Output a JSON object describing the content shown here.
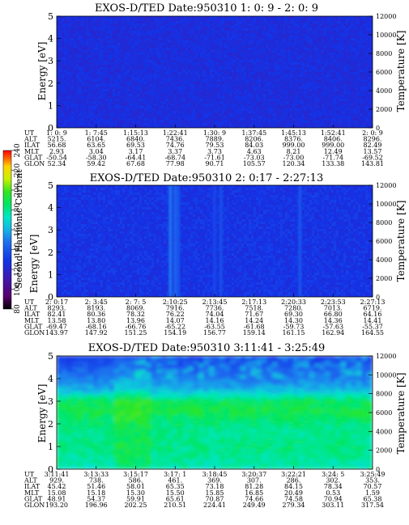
{
  "colorbar": {
    "label": "Second Harmonic Current",
    "ticks": [
      "80",
      "100",
      "120",
      "140",
      "160",
      "180",
      "200",
      "220",
      "240"
    ]
  },
  "panels": [
    {
      "title": "EXOS-D/TED   Date:950310  1: 0: 9 - 2: 0: 9",
      "ylabel_left": "Energy [eV]",
      "ylabel_right": "Temperature [K]",
      "y_ticks": [
        "0",
        "1",
        "2",
        "3",
        "4",
        "5"
      ],
      "t_ticks": [
        "0",
        "2000",
        "4000",
        "6000",
        "8000",
        "10000",
        "12000"
      ],
      "row_labels": [
        "UT",
        "ALT",
        "ILAT",
        "MLT",
        "GLAT",
        "GLON"
      ],
      "columns": [
        [
          "1: 0: 9",
          "5215.",
          "56.68",
          "2.93",
          "-50.54",
          "52.34"
        ],
        [
          "1: 7:45",
          "6104.",
          "63.65",
          "3.04",
          "-58.30",
          "59.42"
        ],
        [
          "1:15:13",
          "6840.",
          "69.53",
          "3.17",
          "-64.41",
          "67.68"
        ],
        [
          "1:22:41",
          "7436.",
          "74.76",
          "3.37",
          "-68.74",
          "77.98"
        ],
        [
          "1:30: 9",
          "7889.",
          "79.53",
          "3.73",
          "-71.61",
          "90.71"
        ],
        [
          "1:37:45",
          "8206.",
          "84.03",
          "4.63",
          "-73.03",
          "105.57"
        ],
        [
          "1:45:13",
          "8376.",
          "999.00",
          "8.21",
          "-73.00",
          "120.34"
        ],
        [
          "1:52:41",
          "8406.",
          "999.00",
          "12.49",
          "-71.74",
          "133.38"
        ],
        [
          "2: 0: 9",
          "8296.",
          "82.49",
          "13.57",
          "-69.52",
          "143.81"
        ]
      ]
    },
    {
      "title": "EXOS-D/TED   Date:950310  2: 0:17 - 2:27:13",
      "ylabel_left": "Energy [eV]",
      "ylabel_right": "Temperature [K]",
      "y_ticks": [
        "0",
        "1",
        "2",
        "3",
        "4",
        "5"
      ],
      "t_ticks": [
        "0",
        "2000",
        "4000",
        "6000",
        "8000",
        "10000",
        "12000"
      ],
      "row_labels": [
        "UT",
        "ALT",
        "ILAT",
        "MLT",
        "GLAT",
        "GLON"
      ],
      "columns": [
        [
          "2: 0:17",
          "8293.",
          "82.41",
          "13.58",
          "-69.47",
          "143.97"
        ],
        [
          "2: 3:45",
          "8193.",
          "80.36",
          "13.80",
          "-68.16",
          "147.92"
        ],
        [
          "2: 7: 5",
          "8069.",
          "78.32",
          "13.96",
          "-66.76",
          "151.25"
        ],
        [
          "2:10:25",
          "7916.",
          "76.22",
          "14.07",
          "-65.22",
          "154.19"
        ],
        [
          "2:13:45",
          "7736.",
          "74.04",
          "14.16",
          "-63.55",
          "156.77"
        ],
        [
          "2:17:13",
          "7518.",
          "71.67",
          "14.24",
          "-61.68",
          "159.14"
        ],
        [
          "2:20:33",
          "7280.",
          "69.30",
          "14.30",
          "-59.73",
          "161.15"
        ],
        [
          "2:23:53",
          "7013.",
          "66.80",
          "14.36",
          "-57.63",
          "162.94"
        ],
        [
          "2:27:13",
          "6719.",
          "64.16",
          "14.41",
          "-55.37",
          "164.55"
        ]
      ]
    },
    {
      "title": "EXOS-D/TED   Date:950310  3:11:41 - 3:25:49",
      "ylabel_left": "Energy [eV]",
      "ylabel_right": "Temperature [K]",
      "y_ticks": [
        "0",
        "1",
        "2",
        "3",
        "4",
        "5"
      ],
      "t_ticks": [
        "0",
        "2000",
        "4000",
        "6000",
        "8000",
        "10000",
        "12000"
      ],
      "row_labels": [
        "UT",
        "ALT",
        "ILAT",
        "MLT",
        "GLAT",
        "GLON"
      ],
      "columns": [
        [
          "3:11:41",
          "929.",
          "45.42",
          "15.08",
          "48.91",
          "193.20"
        ],
        [
          "3:13:33",
          "738.",
          "51.46",
          "15.18",
          "54.37",
          "196.96"
        ],
        [
          "3:15:17",
          "586.",
          "58.01",
          "15.30",
          "59.91",
          "202.25"
        ],
        [
          "3:17: 1",
          "461.",
          "65.35",
          "15.50",
          "65.61",
          "210.51"
        ],
        [
          "3:18:45",
          "369.",
          "73.18",
          "15.85",
          "70.87",
          "224.41"
        ],
        [
          "3:20:37",
          "307.",
          "81.28",
          "16.85",
          "74.66",
          "249.49"
        ],
        [
          "3:22:21",
          "286.",
          "84.15",
          "20.49",
          "74.58",
          "279.34"
        ],
        [
          "3:24: 5",
          "302.",
          "78.34",
          "0.53",
          "70.94",
          "303.11"
        ],
        [
          "3:25:49",
          "353.",
          "70.57",
          "1.59",
          "65.38",
          "317.54"
        ]
      ]
    }
  ],
  "chart_data": [
    {
      "type": "heatmap",
      "title": "EXOS-D/TED   Date:950310  1: 0: 9 - 2: 0: 9",
      "xlabel": "UT",
      "ylabel": "Energy [eV]",
      "y2label": "Temperature [K]",
      "ylim": [
        0,
        5
      ],
      "y2lim": [
        0,
        12000
      ],
      "colorscale": "Second Harmonic Current",
      "clim": [
        80,
        240
      ],
      "description_levels": {
        "background": 125
      },
      "bands": []
    },
    {
      "type": "heatmap",
      "title": "EXOS-D/TED   Date:950310  2: 0:17 - 2:27:13",
      "xlabel": "UT",
      "ylabel": "Energy [eV]",
      "y2label": "Temperature [K]",
      "ylim": [
        0,
        5
      ],
      "y2lim": [
        0,
        12000
      ],
      "colorscale": "Second Harmonic Current",
      "clim": [
        80,
        240
      ],
      "description_levels": {
        "background": 128
      },
      "bands": [
        {
          "ut_frac": 0.36,
          "level": 150
        },
        {
          "ut_frac": 0.375,
          "level": 145
        },
        {
          "ut_frac": 0.385,
          "level": 140
        },
        {
          "ut_frac": 0.5,
          "level": 135
        },
        {
          "ut_frac": 0.52,
          "level": 138
        },
        {
          "ut_frac": 0.77,
          "level": 140
        }
      ]
    },
    {
      "type": "heatmap",
      "title": "EXOS-D/TED   Date:950310  3:11:41 - 3:25:49",
      "xlabel": "UT",
      "ylabel": "Energy [eV]",
      "y2label": "Temperature [K]",
      "ylim": [
        0,
        5
      ],
      "y2lim": [
        0,
        12000
      ],
      "colorscale": "Second Harmonic Current",
      "clim": [
        80,
        240
      ],
      "energy_profile": [
        {
          "energy": 0.0,
          "level": 175
        },
        {
          "energy": 0.5,
          "level": 180
        },
        {
          "energy": 1.0,
          "level": 182
        },
        {
          "energy": 1.5,
          "level": 180
        },
        {
          "energy": 2.0,
          "level": 183
        },
        {
          "energy": 2.5,
          "level": 190
        },
        {
          "energy": 3.0,
          "level": 186
        },
        {
          "energy": 3.5,
          "level": 160
        },
        {
          "energy": 4.0,
          "level": 150
        },
        {
          "energy": 4.5,
          "level": 140
        },
        {
          "energy": 5.0,
          "level": 130
        }
      ]
    }
  ],
  "colors": {
    "colormap": [
      "#000000",
      "#5a006e",
      "#3c1ab4",
      "#1432e6",
      "#1e6ef0",
      "#14b4e6",
      "#00e6c8",
      "#00e664",
      "#32e61e",
      "#c8f000",
      "#ffd200",
      "#ff6400",
      "#ff0000"
    ]
  }
}
